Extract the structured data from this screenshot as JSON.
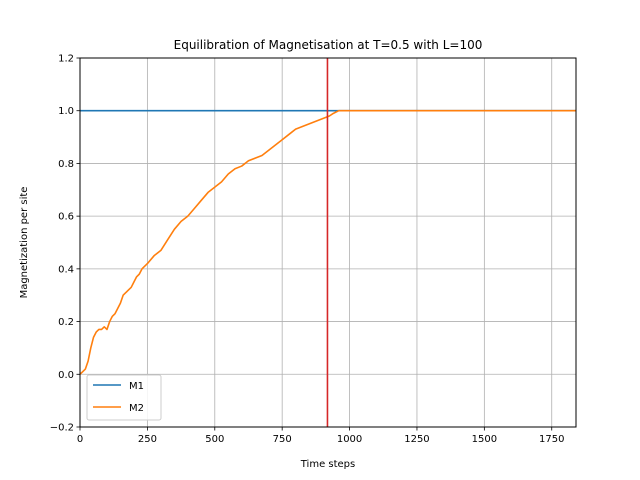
{
  "chart_data": {
    "type": "line",
    "title": "Equilibration of Magnetisation at T=0.5 with L=100",
    "xlabel": "Time steps",
    "ylabel": "Magnetization per site",
    "xlim": [
      0,
      1840
    ],
    "ylim": [
      -0.2,
      1.2
    ],
    "xticks": [
      0,
      250,
      500,
      750,
      1000,
      1250,
      1500,
      1750
    ],
    "yticks": [
      -0.2,
      0.0,
      0.2,
      0.4,
      0.6,
      0.8,
      1.0,
      1.2
    ],
    "ytick_labels": [
      "−0.2",
      "0.0",
      "0.2",
      "0.4",
      "0.6",
      "0.8",
      "1.0",
      "1.2"
    ],
    "grid": true,
    "legend_position": "lower-left",
    "series": [
      {
        "name": "M1",
        "color": "#1f77b4",
        "x": [
          0,
          1840
        ],
        "y": [
          1.0,
          1.0
        ]
      },
      {
        "name": " M2",
        "color": "#ff7f0e",
        "x": [
          0,
          10,
          20,
          30,
          40,
          50,
          60,
          70,
          80,
          90,
          100,
          110,
          120,
          130,
          140,
          150,
          160,
          170,
          180,
          190,
          200,
          210,
          220,
          230,
          240,
          250,
          275,
          300,
          325,
          350,
          375,
          400,
          425,
          450,
          475,
          500,
          525,
          550,
          575,
          600,
          625,
          650,
          675,
          700,
          725,
          750,
          775,
          800,
          825,
          850,
          875,
          900,
          925,
          940,
          960,
          1000,
          1250,
          1500,
          1840
        ],
        "y": [
          0.0,
          0.01,
          0.02,
          0.05,
          0.1,
          0.14,
          0.16,
          0.17,
          0.17,
          0.18,
          0.17,
          0.2,
          0.22,
          0.23,
          0.25,
          0.27,
          0.3,
          0.31,
          0.32,
          0.33,
          0.35,
          0.37,
          0.38,
          0.4,
          0.41,
          0.42,
          0.45,
          0.47,
          0.51,
          0.55,
          0.58,
          0.6,
          0.63,
          0.66,
          0.69,
          0.71,
          0.73,
          0.76,
          0.78,
          0.79,
          0.81,
          0.82,
          0.83,
          0.85,
          0.87,
          0.89,
          0.91,
          0.93,
          0.94,
          0.95,
          0.96,
          0.97,
          0.98,
          0.99,
          1.0,
          1.0,
          1.0,
          1.0,
          1.0
        ]
      }
    ],
    "vline": {
      "x": 918,
      "color": "#d62728"
    }
  }
}
